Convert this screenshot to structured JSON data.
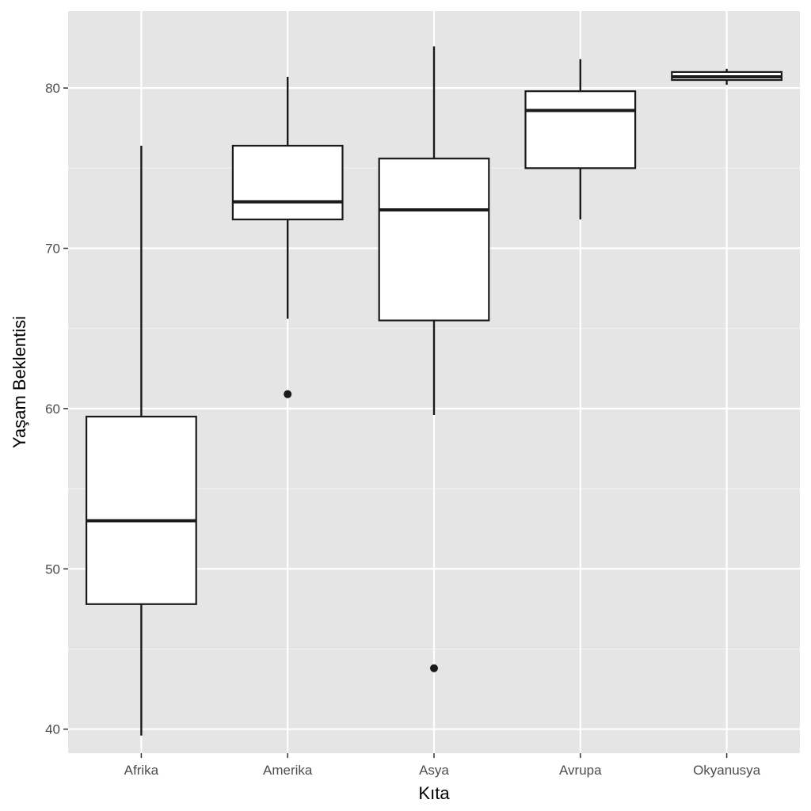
{
  "chart_data": {
    "type": "boxplot",
    "xlabel": "Kıta",
    "ylabel": "Yaşam Beklentisi",
    "categories": [
      "Afrika",
      "Amerika",
      "Asya",
      "Avrupa",
      "Okyanusya"
    ],
    "boxes": [
      {
        "category": "Afrika",
        "whisker_low": 39.6,
        "q1": 47.8,
        "median": 53.0,
        "q3": 59.5,
        "whisker_high": 76.4,
        "outliers": []
      },
      {
        "category": "Amerika",
        "whisker_low": 65.6,
        "q1": 71.8,
        "median": 72.9,
        "q3": 76.4,
        "whisker_high": 80.7,
        "outliers": [
          60.9
        ]
      },
      {
        "category": "Asya",
        "whisker_low": 59.6,
        "q1": 65.5,
        "median": 72.4,
        "q3": 75.6,
        "whisker_high": 82.6,
        "outliers": [
          43.8
        ]
      },
      {
        "category": "Avrupa",
        "whisker_low": 71.8,
        "q1": 75.0,
        "median": 78.6,
        "q3": 79.8,
        "whisker_high": 81.8,
        "outliers": []
      },
      {
        "category": "Okyanusya",
        "whisker_low": 80.2,
        "q1": 80.5,
        "median": 80.7,
        "q3": 81.0,
        "whisker_high": 81.2,
        "outliers": []
      }
    ],
    "y_ticks": [
      40,
      50,
      60,
      70,
      80
    ],
    "ylim": [
      38.5,
      84.8
    ],
    "grid": true,
    "legend": "none",
    "colors": {
      "panel_background": "#e5e5e5",
      "grid_major": "#ffffff",
      "grid_minor": "#f2f2f2",
      "box_fill": "#ffffff",
      "box_stroke": "#1a1a1a",
      "outlier": "#1a1a1a"
    }
  }
}
